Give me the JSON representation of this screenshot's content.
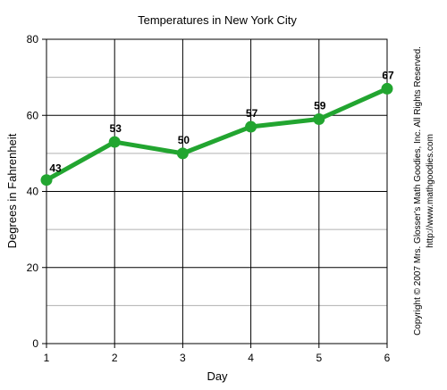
{
  "chart_data": {
    "type": "line",
    "title": "Temperatures in New York City",
    "xlabel": "Day",
    "ylabel": "Degrees in Fahrenheit",
    "x": [
      1,
      2,
      3,
      4,
      5,
      6
    ],
    "series": [
      {
        "values": [
          43,
          53,
          50,
          57,
          59,
          67
        ],
        "color": "#22a530"
      }
    ],
    "xlim": [
      1,
      6
    ],
    "ylim": [
      0,
      80
    ],
    "y_major_ticks": [
      0,
      20,
      40,
      60,
      80
    ],
    "y_minor_step": 10,
    "x_ticks": [
      1,
      2,
      3,
      4,
      5,
      6
    ],
    "grid": true,
    "legend": "none",
    "data_labels": true
  },
  "copyright": {
    "line1": "Copyright © 2007 Mrs. Glosser's Math Goodies, Inc. All Rights Reserved.",
    "line2": "http://www.mathgoodies.com"
  },
  "colors": {
    "line": "#22a530",
    "grid_major": "#000000",
    "grid_minor": "#b0b0b0"
  }
}
